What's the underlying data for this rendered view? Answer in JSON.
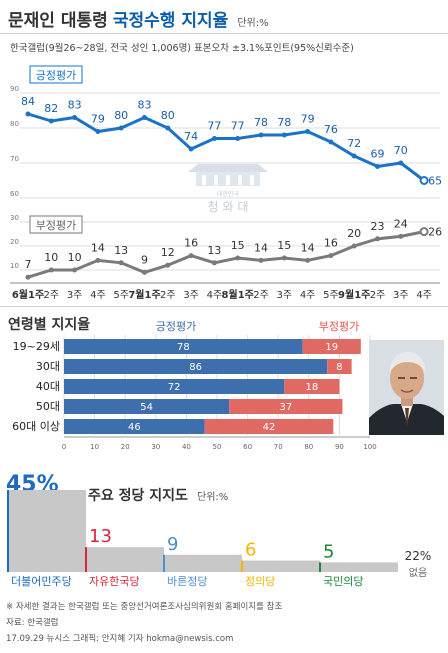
{
  "header": {
    "title_plain": "문재인 대통령",
    "title_bold": "국정수행 지지율",
    "unit": "단위:%",
    "survey_note": "한국갤럽(9월26~28일, 전국 성인 1,006명) 표본오차 ±3.1%포인트(95%신뢰수준)"
  },
  "watermark": {
    "small": "대한민국",
    "large": "청 와 대"
  },
  "trend": {
    "series_labels": {
      "positive": "긍정평가",
      "negative": "부정평가"
    },
    "y_ticks": [
      "90",
      "80",
      "70",
      "60",
      "30",
      "20",
      "10"
    ],
    "x_labels": [
      "6월1주",
      "2주",
      "3주",
      "4주",
      "5주",
      "7월1주",
      "2주",
      "3주",
      "4주",
      "8월1주",
      "2주",
      "3주",
      "4주",
      "5주",
      "9월1주",
      "2주",
      "3주",
      "4주"
    ]
  },
  "age_section": {
    "title": "연령별 지지율",
    "legend_positive": "긍정평가",
    "legend_negative": "부정평가",
    "axis_ticks": [
      "0",
      "10",
      "20",
      "30",
      "40",
      "50",
      "60",
      "70",
      "80",
      "90",
      "100"
    ]
  },
  "party_section": {
    "title": "주요 정당 지지도",
    "unit": "단위:%",
    "parties": [
      {
        "name": "더불어민주당",
        "value_label": "45%",
        "color": "#1e6bbf"
      },
      {
        "name": "자유한국당",
        "value_label": "13",
        "color": "#d8283a"
      },
      {
        "name": "바른정당",
        "value_label": "9",
        "color": "#4a8fd0"
      },
      {
        "name": "정의당",
        "value_label": "6",
        "color": "#f2b500"
      },
      {
        "name": "국민의당",
        "value_label": "5",
        "color": "#1a8a3a"
      }
    ],
    "none_value": "22%",
    "none_label": "없음"
  },
  "footer": {
    "note": "※ 자세한 결과는 한국갤럽 또는 중앙선거여론조사심의위원회 홈페이지를 참조",
    "source": "자료: 한국갤럽",
    "credit": "17.09.29 뉴시스 그래픽: 안지혜 기자 hokma@newsis.com"
  },
  "chart_data": [
    {
      "type": "line",
      "x": [
        "6월1주",
        "2주",
        "3주",
        "4주",
        "5주",
        "7월1주",
        "2주",
        "3주",
        "4주",
        "8월1주",
        "2주",
        "3주",
        "4주",
        "5주",
        "9월1주",
        "2주",
        "3주",
        "4주"
      ],
      "series": [
        {
          "name": "긍정평가",
          "color": "#1a73c6",
          "values": [
            84,
            82,
            83,
            79,
            80,
            83,
            80,
            74,
            77,
            77,
            78,
            78,
            79,
            76,
            72,
            69,
            70,
            65
          ]
        },
        {
          "name": "부정평가",
          "color": "#7a7a7a",
          "values": [
            7,
            10,
            10,
            14,
            13,
            9,
            12,
            16,
            13,
            15,
            14,
            15,
            14,
            16,
            20,
            23,
            24,
            26
          ]
        }
      ]
    },
    {
      "type": "bar",
      "title": "연령별 지지율",
      "categories": [
        "19~29세",
        "30대",
        "40대",
        "50대",
        "60대 이상"
      ],
      "series": [
        {
          "name": "긍정평가",
          "color": "#3d6fad",
          "values": [
            78,
            86,
            72,
            54,
            46
          ]
        },
        {
          "name": "부정평가",
          "color": "#e06a63",
          "values": [
            19,
            8,
            18,
            37,
            42
          ]
        }
      ],
      "xlim": [
        0,
        100
      ]
    },
    {
      "type": "bar",
      "title": "주요 정당 지지도",
      "categories": [
        "더불어민주당",
        "자유한국당",
        "바른정당",
        "정의당",
        "국민의당",
        "없음"
      ],
      "values": [
        45,
        13,
        9,
        6,
        5,
        22
      ]
    }
  ]
}
